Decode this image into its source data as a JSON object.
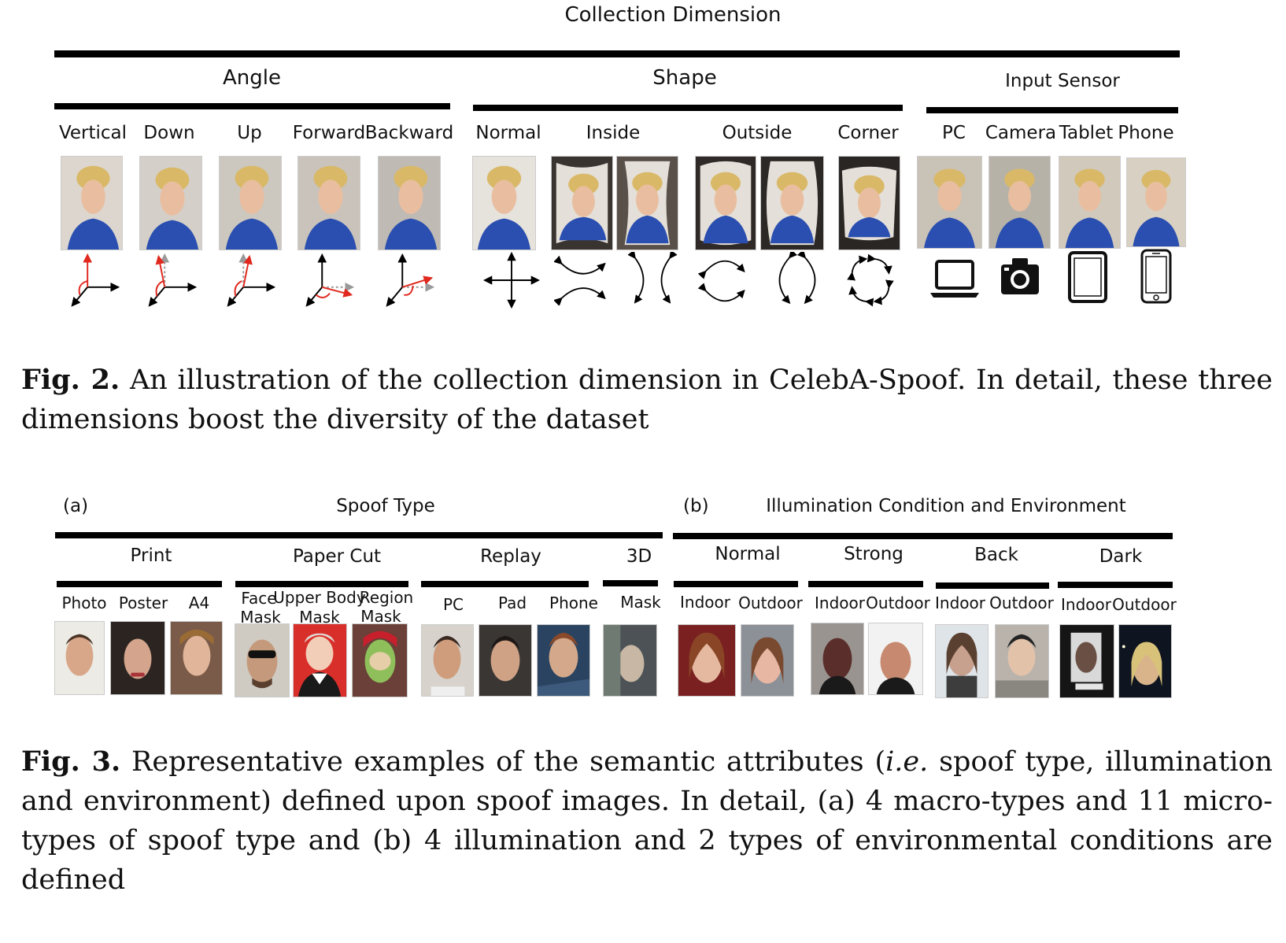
{
  "fig2": {
    "title": "Collection Dimension",
    "groups": {
      "angle": "Angle",
      "shape": "Shape",
      "sensor": "Input Sensor"
    },
    "columns": [
      "Vertical",
      "Down",
      "Up",
      "Forward",
      "Backward",
      "Normal",
      "Inside",
      "Outside",
      "Corner",
      "PC",
      "Camera",
      "Tablet",
      "Phone"
    ],
    "caption_label": "Fig. 2.",
    "caption_text": " An illustration of the collection dimension in CelebA-Spoof. In detail, these three dimensions boost the diversity of the dataset"
  },
  "fig3": {
    "panel_a_tag": "(a)",
    "panel_a_title": "Spoof Type",
    "panel_b_tag": "(b)",
    "panel_b_title": "Illumination Condition and Environment",
    "spoof_groups": [
      "Print",
      "Paper Cut",
      "Replay",
      "3D"
    ],
    "spoof_subs": {
      "photo": "Photo",
      "poster": "Poster",
      "a4": "A4",
      "face_mask_1": "Face",
      "face_mask_2": "Mask",
      "upper_body_1": "Upper Body",
      "upper_body_2": "Mask",
      "region_1": "Region",
      "region_2": "Mask",
      "pc": "PC",
      "pad": "Pad",
      "phone": "Phone",
      "mask": "Mask"
    },
    "illum_groups": [
      "Normal",
      "Strong",
      "Back",
      "Dark"
    ],
    "env_labels": [
      "Indoor",
      "Outdoor"
    ],
    "caption_label": "Fig. 3.",
    "caption_text_1": " Representative examples of the semantic attributes (",
    "caption_italic": "i.e.",
    "caption_text_2": " spoof type, illumination and environment) defined upon spoof images. In detail, (a) 4 macro-types and 11 micro-types of spoof type and (b) 4 illumination and 2 types of environmental conditions are defined"
  },
  "icons": {
    "angle": [
      "axes-vertical-icon",
      "axes-down-icon",
      "axes-up-icon",
      "axes-forward-icon",
      "axes-backward-icon"
    ],
    "shape": [
      "cross-arrows-icon",
      "inside-bend-horizontal-icon",
      "inside-bend-vertical-icon",
      "outside-bend-horizontal-icon",
      "outside-bend-vertical-icon",
      "corner-bend-icon"
    ],
    "sensor": [
      "laptop-icon",
      "camera-icon",
      "tablet-icon",
      "phone-icon"
    ]
  },
  "colors": {
    "accent_red": "#e0281e",
    "rule": "#000000"
  }
}
